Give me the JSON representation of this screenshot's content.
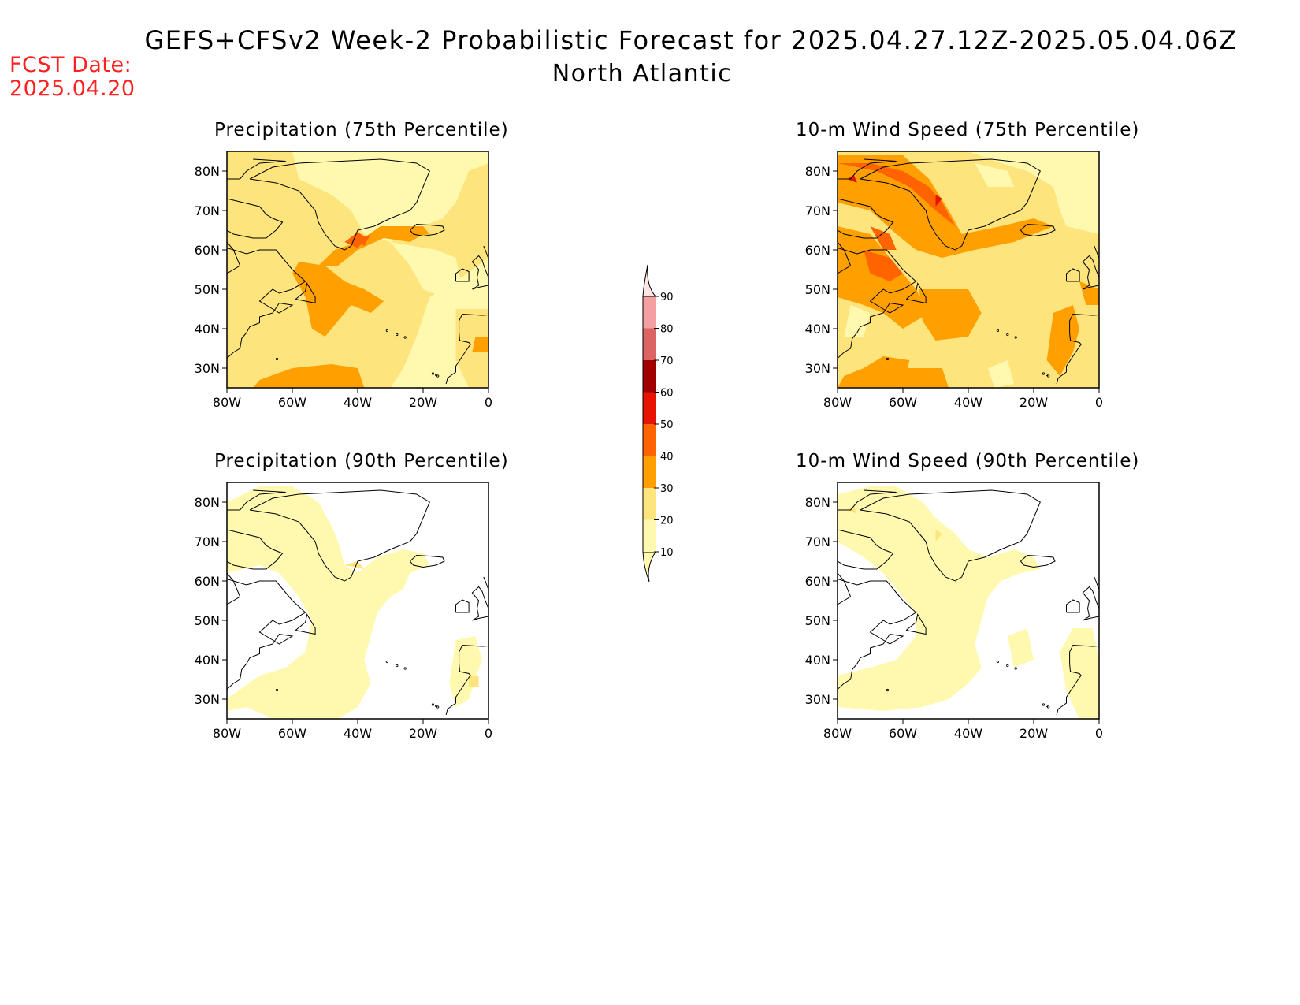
{
  "header": {
    "title": "GEFS+CFSv2 Week-2 Probabilistic Forecast for 2025.04.27.12Z-2025.05.04.06Z",
    "subtitle": "North Atlantic",
    "fcst_date_label": "FCST Date:",
    "fcst_date_value": "2025.04.20",
    "fcst_date_color": "#ff2020"
  },
  "panels": [
    {
      "title": "Precipitation (75th Percentile)",
      "variable": "precipitation",
      "percentile": 75
    },
    {
      "title": "10-m Wind Speed (75th Percentile)",
      "variable": "wind",
      "percentile": 75
    },
    {
      "title": "Precipitation (90th Percentile)",
      "variable": "precipitation",
      "percentile": 90
    },
    {
      "title": "10-m Wind Speed (90th Percentile)",
      "variable": "wind",
      "percentile": 90
    }
  ],
  "map_axes": {
    "lat_labels": [
      "80N",
      "70N",
      "60N",
      "50N",
      "40N",
      "30N"
    ],
    "lon_labels": [
      "80W",
      "60W",
      "40W",
      "20W",
      "0"
    ],
    "lat_range": [
      25,
      85
    ],
    "lon_range": [
      -80,
      0
    ]
  },
  "colorbar": {
    "levels": [
      "10",
      "20",
      "30",
      "40",
      "50",
      "60",
      "70",
      "80",
      "90"
    ],
    "colors": [
      "#fff9b0",
      "#fde47c",
      "#ffa000",
      "#ff6400",
      "#e61400",
      "#a00000",
      "#dc6464",
      "#f5a0a0",
      "#ffe6e6"
    ]
  }
}
